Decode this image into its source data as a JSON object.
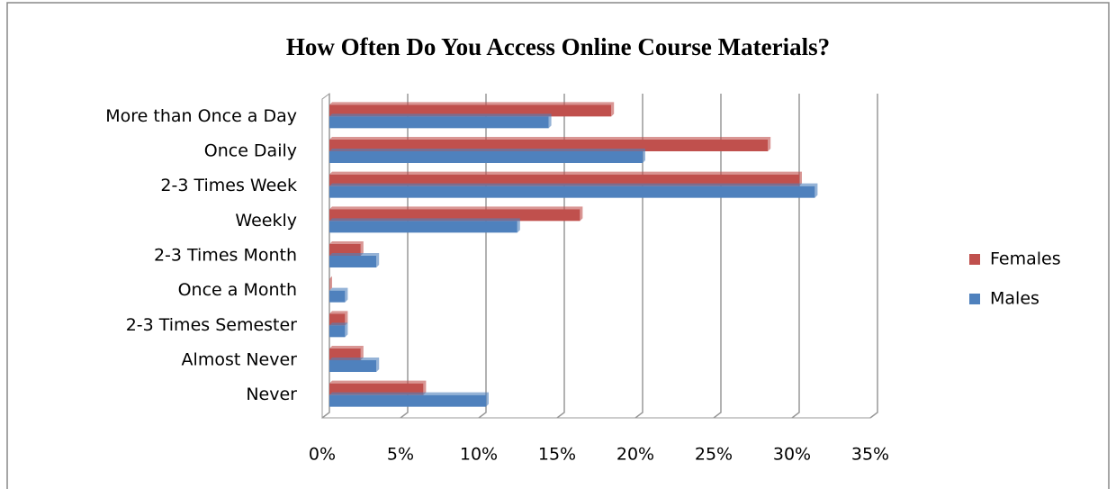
{
  "chart_data": {
    "type": "hbar",
    "title": "How Often Do You Access Online Course Materials?",
    "categories": [
      "More than Once a Day",
      "Once Daily",
      "2-3 Times Week",
      "Weekly",
      "2-3 Times Month",
      "Once a Month",
      "2-3 Times Semester",
      "Almost Never",
      "Never"
    ],
    "series": [
      {
        "name": "Females",
        "color": "#c0504d",
        "values": [
          18,
          28,
          30,
          16,
          2,
          0,
          1,
          2,
          6
        ]
      },
      {
        "name": "Males",
        "color": "#4f81bd",
        "values": [
          14,
          20,
          31,
          12,
          3,
          1,
          1,
          3,
          10
        ]
      }
    ],
    "xlim": [
      0,
      35
    ],
    "xticks": [
      {
        "value": 0,
        "label": "0%"
      },
      {
        "value": 5,
        "label": "5%"
      },
      {
        "value": 10,
        "label": "10%"
      },
      {
        "value": 15,
        "label": "15%"
      },
      {
        "value": 20,
        "label": "20%"
      },
      {
        "value": 25,
        "label": "25%"
      },
      {
        "value": 30,
        "label": "30%"
      },
      {
        "value": 35,
        "label": "35%"
      }
    ],
    "grid": true,
    "legend": "right"
  }
}
